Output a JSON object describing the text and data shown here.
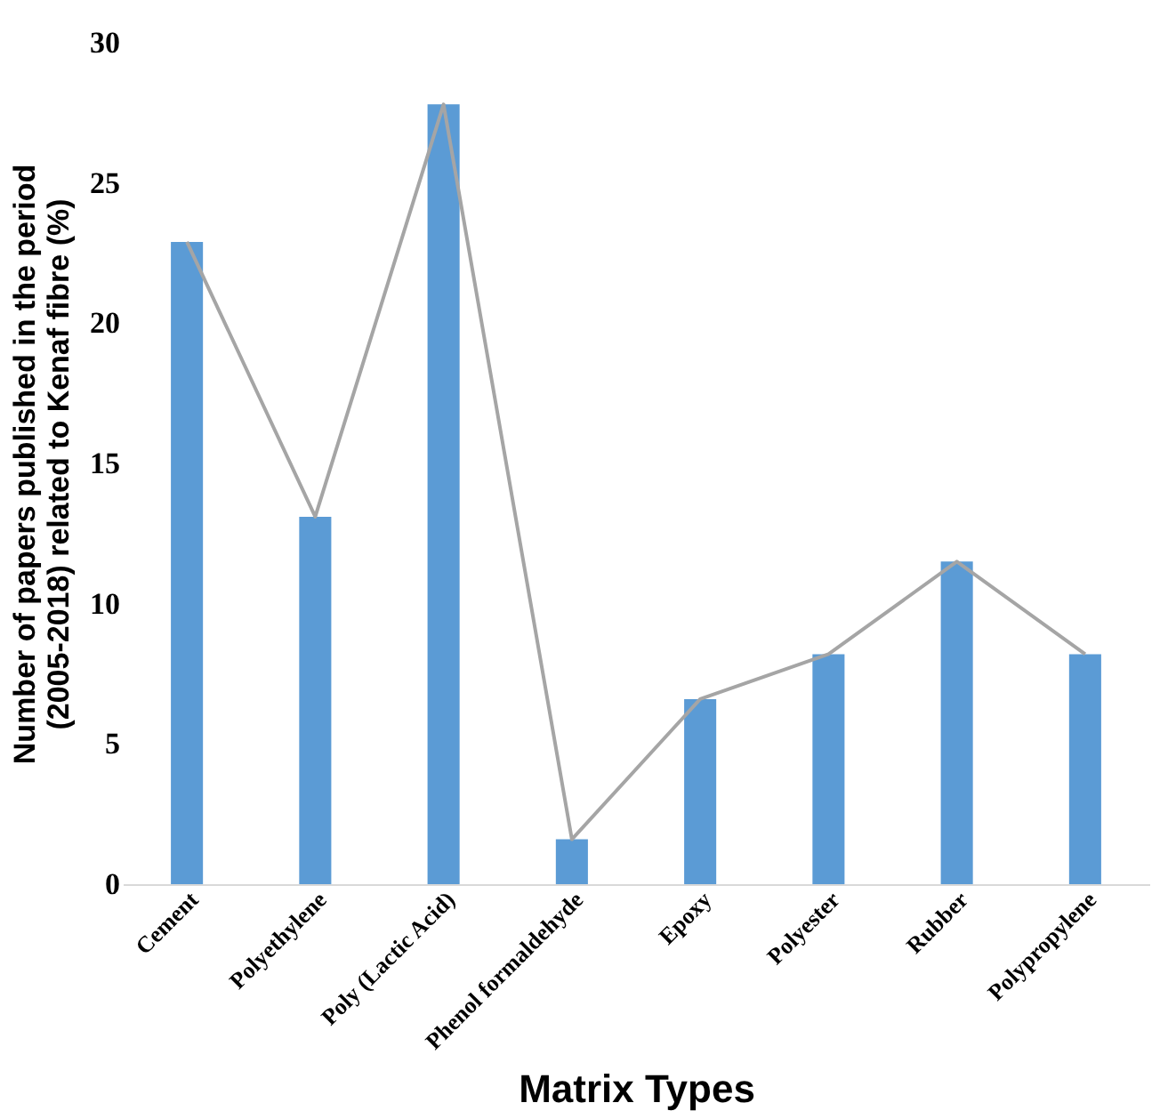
{
  "chart_data": {
    "type": "bar",
    "categories": [
      "Cement",
      "Polyethylene",
      "Poly (Lactic Acid)",
      "Phenol formaldehyde",
      "Epoxy",
      "Polyester",
      "Rubber",
      "Polypropylene"
    ],
    "series": [
      {
        "color": "#5b9bd5",
        "values": [
          22.9,
          13.1,
          27.8,
          1.6,
          6.6,
          8.2,
          11.5,
          8.2
        ]
      },
      {
        "type": "line",
        "color": "#a5a5a5",
        "values": [
          22.9,
          13.1,
          27.8,
          1.6,
          6.6,
          8.2,
          11.5,
          8.2
        ]
      }
    ],
    "xlabel": "Matrix Types",
    "ylabel": "Number of papers published in the period\n(2005-2018) related to Kenaf fibre (%)",
    "ylim": [
      0,
      30
    ],
    "yticks": [
      0,
      5,
      10,
      15,
      20,
      25,
      30
    ],
    "grid": false
  }
}
